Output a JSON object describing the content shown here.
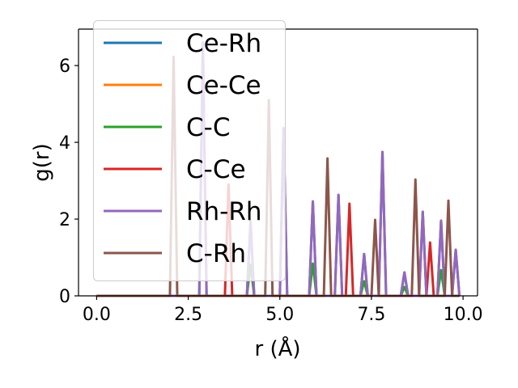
{
  "chart_data": {
    "type": "line",
    "title": "",
    "xlabel": "r (Å)",
    "ylabel": "g(r)",
    "xlim": [
      -0.495,
      10.395
    ],
    "ylim": [
      0,
      6.95
    ],
    "x_grid": {
      "start": 0.0,
      "step": 0.1,
      "end": 9.9
    },
    "xticks": [
      0.0,
      2.5,
      5.0,
      7.5,
      10.0
    ],
    "xtick_labels": [
      "0.0",
      "2.5",
      "5.0",
      "7.5",
      "10.0"
    ],
    "yticks": [
      0,
      2,
      4,
      6
    ],
    "ytick_labels": [
      "0",
      "2",
      "4",
      "6"
    ],
    "grid": false,
    "legend_placement": "upper-left",
    "values_note_default": 0,
    "series": [
      {
        "name": "Ce-Rh",
        "color": "#1f77b4",
        "points": [
          [
            2.9,
            6.6
          ],
          [
            4.2,
            1.95
          ],
          [
            5.1,
            4.37
          ],
          [
            5.9,
            2.46
          ],
          [
            6.6,
            2.63
          ],
          [
            7.3,
            1.09
          ],
          [
            7.8,
            3.75
          ],
          [
            8.4,
            0.61
          ],
          [
            8.9,
            2.19
          ],
          [
            9.4,
            1.96
          ],
          [
            9.8,
            1.2
          ]
        ]
      },
      {
        "name": "Ce-Ce",
        "color": "#ff7f0e",
        "points": []
      },
      {
        "name": "C-C",
        "color": "#2ca02c",
        "points": [
          [
            4.2,
            0.82
          ],
          [
            5.9,
            0.84
          ],
          [
            7.3,
            0.38
          ],
          [
            8.4,
            0.23
          ],
          [
            9.4,
            0.67
          ]
        ]
      },
      {
        "name": "C-Ce",
        "color": "#d62728",
        "points": [
          [
            3.6,
            2.9
          ],
          [
            6.9,
            2.4
          ],
          [
            9.1,
            1.39
          ]
        ]
      },
      {
        "name": "Rh-Rh",
        "color": "#9467bd",
        "points": [
          [
            2.9,
            6.6
          ],
          [
            4.2,
            1.95
          ],
          [
            5.1,
            4.37
          ],
          [
            5.9,
            2.46
          ],
          [
            6.6,
            2.63
          ],
          [
            7.3,
            1.09
          ],
          [
            7.8,
            3.75
          ],
          [
            8.4,
            0.61
          ],
          [
            8.9,
            2.19
          ],
          [
            9.4,
            1.96
          ],
          [
            9.8,
            1.2
          ]
        ]
      },
      {
        "name": "C-Rh",
        "color": "#8c564b",
        "points": [
          [
            2.1,
            6.23
          ],
          [
            4.7,
            5.1
          ],
          [
            6.3,
            3.58
          ],
          [
            7.6,
            1.98
          ],
          [
            8.7,
            3.03
          ],
          [
            9.6,
            2.48
          ]
        ]
      }
    ]
  }
}
